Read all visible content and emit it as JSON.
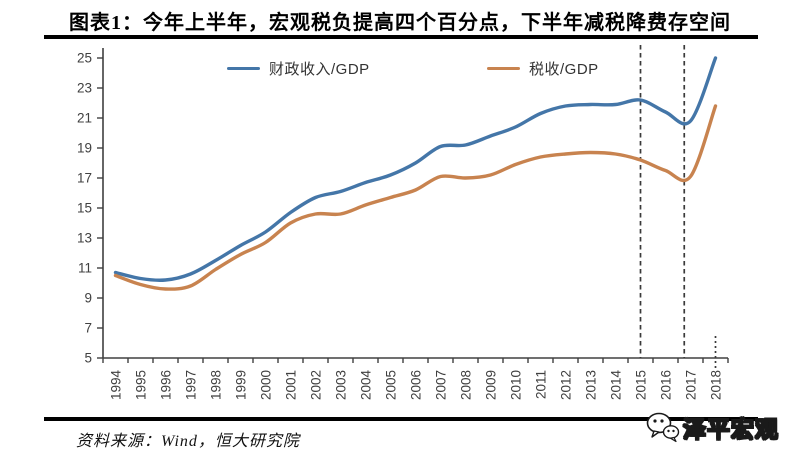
{
  "header": {
    "title": "图表1：今年上半年，宏观税负提高四个百分点，下半年减税降费存空间"
  },
  "chart_data": {
    "type": "line",
    "x": [
      1994,
      1995,
      1996,
      1997,
      1998,
      1999,
      2000,
      2001,
      2002,
      2003,
      2004,
      2005,
      2006,
      2007,
      2008,
      2009,
      2010,
      2011,
      2012,
      2013,
      2014,
      2015,
      2016,
      2017,
      2018
    ],
    "series": [
      {
        "name": "财政收入/GDP",
        "color": "#4476A8",
        "values": [
          10.7,
          10.3,
          10.2,
          10.6,
          11.5,
          12.5,
          13.4,
          14.7,
          15.7,
          16.1,
          16.7,
          17.2,
          18.0,
          19.1,
          19.2,
          19.8,
          20.4,
          21.3,
          21.8,
          21.9,
          21.9,
          22.2,
          21.4,
          20.8,
          25.0
        ]
      },
      {
        "name": "税收/GDP",
        "color": "#C8834F",
        "values": [
          10.5,
          9.9,
          9.6,
          9.8,
          10.9,
          11.9,
          12.7,
          14.0,
          14.6,
          14.6,
          15.2,
          15.7,
          16.2,
          17.1,
          17.0,
          17.2,
          17.9,
          18.4,
          18.6,
          18.7,
          18.6,
          18.2,
          17.5,
          17.1,
          21.8
        ]
      }
    ],
    "ylim": [
      5,
      25
    ],
    "ytick_step": 2,
    "grid": false,
    "legend_position": "top",
    "axis_color": "#404040",
    "annotations": {
      "dashed_vlines_x": [
        2015,
        2016.75
      ],
      "dotted_tick_x": 2018
    }
  },
  "footer": {
    "source": "资料来源：Wind，恒大研究院",
    "logo_icon": "wechat-icon",
    "logo_text": "泽平宏观"
  }
}
